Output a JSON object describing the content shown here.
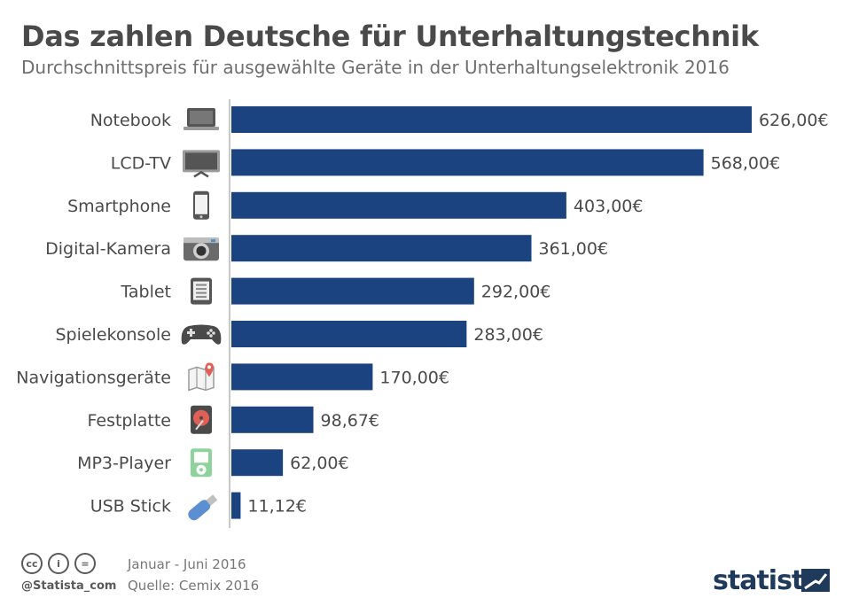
{
  "header": {
    "title": "Das zahlen Deutsche für Unterhaltungstechnik",
    "subtitle": "Durchschnittspreis für ausgewählte Geräte in der Unterhaltungselektronik 2016"
  },
  "chart_data": {
    "type": "bar",
    "orientation": "horizontal",
    "categories": [
      "Notebook",
      "LCD-TV",
      "Smartphone",
      "Digital-Kamera",
      "Tablet",
      "Spielekonsole",
      "Navigationsgeräte",
      "Festplatte",
      "MP3-Player",
      "USB Stick"
    ],
    "values": [
      626.0,
      568.0,
      403.0,
      361.0,
      292.0,
      283.0,
      170.0,
      98.67,
      62.0,
      11.12
    ],
    "value_labels": [
      "626,00€",
      "568,00€",
      "403,00€",
      "361,00€",
      "292,00€",
      "283,00€",
      "170,00€",
      "98,67€",
      "62,00€",
      "11,12€"
    ],
    "icons": [
      "laptop-icon",
      "tv-icon",
      "smartphone-icon",
      "camera-icon",
      "tablet-icon",
      "gamepad-icon",
      "map-pin-icon",
      "harddrive-icon",
      "mp3-player-icon",
      "usb-stick-icon"
    ],
    "title": "Das zahlen Deutsche für Unterhaltungstechnik",
    "xlim": [
      0,
      626
    ],
    "grid": false,
    "bar_color": "#1a4380"
  },
  "footer": {
    "license_icons": [
      "cc",
      "by",
      "nd"
    ],
    "handle": "@Statista_com",
    "period": "Januar - Juni 2016",
    "source": "Quelle: Cemix 2016",
    "brand": "statista"
  }
}
